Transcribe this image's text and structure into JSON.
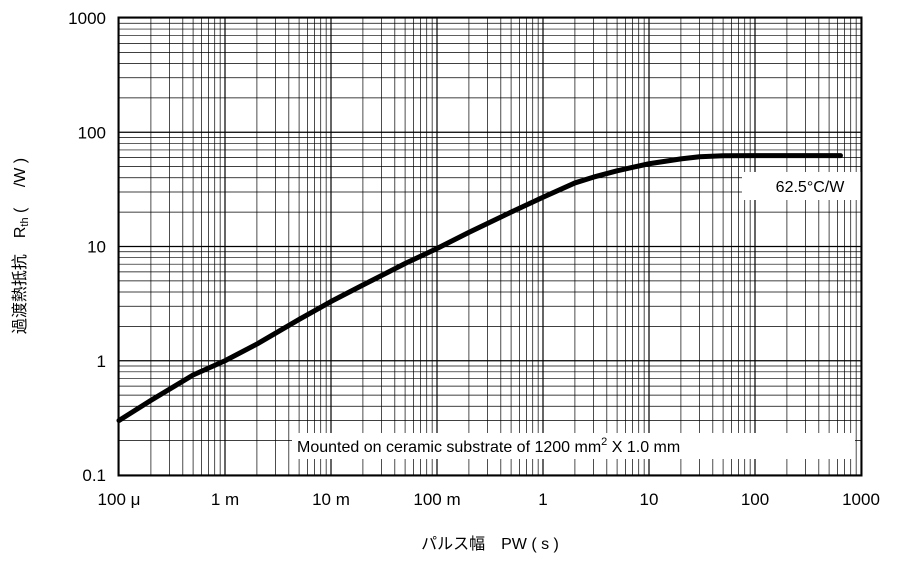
{
  "chart_data": {
    "type": "line",
    "xlabel": "パルス幅　PW ( s )",
    "ylabel": "過渡熱抵抗　Rth (　 /W )",
    "ylabel_main": "過渡熱抵抗　R",
    "ylabel_sub": "th",
    "ylabel_unit": " (　 /W )",
    "x_scale": "log",
    "y_scale": "log",
    "xlim": [
      0.0001,
      1000
    ],
    "ylim": [
      0.1,
      1000
    ],
    "x_ticks": [
      {
        "value": 0.0001,
        "label": "100 μ"
      },
      {
        "value": 0.001,
        "label": "1 m"
      },
      {
        "value": 0.01,
        "label": "10 m"
      },
      {
        "value": 0.1,
        "label": "100 m"
      },
      {
        "value": 1,
        "label": "1"
      },
      {
        "value": 10,
        "label": "10"
      },
      {
        "value": 100,
        "label": "100"
      },
      {
        "value": 1000,
        "label": "1000"
      }
    ],
    "y_ticks": [
      {
        "value": 0.1,
        "label": "0.1"
      },
      {
        "value": 1,
        "label": "1"
      },
      {
        "value": 10,
        "label": "10"
      },
      {
        "value": 100,
        "label": "100"
      },
      {
        "value": 1000,
        "label": "1000"
      }
    ],
    "grid": true,
    "series": [
      {
        "color": "#000000",
        "x": [
          0.0001,
          0.0002,
          0.0005,
          0.001,
          0.002,
          0.005,
          0.01,
          0.02,
          0.05,
          0.1,
          0.2,
          0.5,
          1,
          2,
          3,
          5,
          10,
          20,
          30,
          50,
          100,
          200,
          400,
          640
        ],
        "y": [
          0.3,
          0.45,
          0.75,
          1.0,
          1.4,
          2.3,
          3.3,
          4.6,
          7.1,
          9.6,
          13.3,
          20,
          27,
          36,
          40.5,
          46,
          53,
          58.5,
          61,
          62.2,
          62.5,
          62.5,
          62.5,
          62.5
        ]
      }
    ],
    "annotations": [
      {
        "text": "62.5°C/W"
      },
      {
        "text_main": "Mounted on ceramic substrate of 1200 mm",
        "superscript": "2",
        "text_tail": " X 1.0 mm"
      }
    ]
  }
}
